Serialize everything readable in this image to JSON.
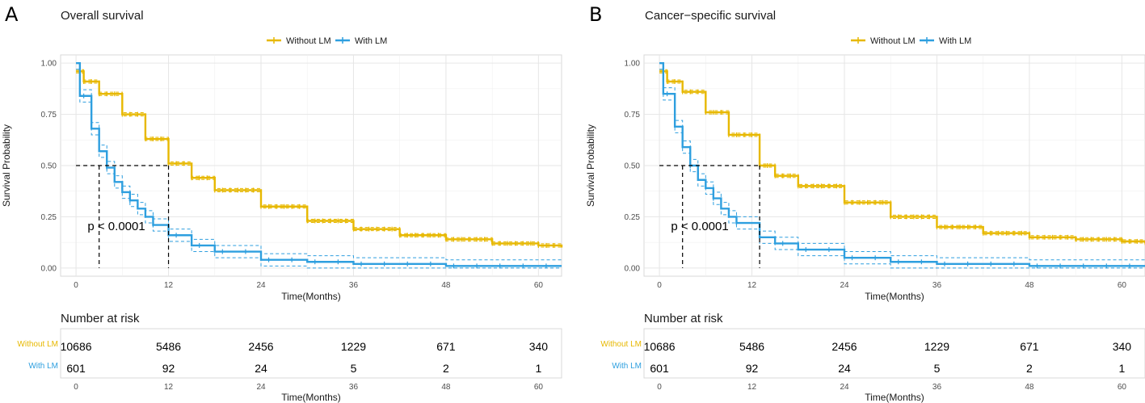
{
  "chart_data": [
    {
      "type": "line",
      "panel_label": "A",
      "title": "Overall survival",
      "xlabel": "Time(Months)",
      "ylabel": "Survival Probability",
      "xlim": [
        -2,
        63
      ],
      "ylim": [
        -0.04,
        1.04
      ],
      "xticks": [
        "0",
        "12",
        "24",
        "36",
        "48",
        "60"
      ],
      "yticks": [
        "0.00",
        "0.25",
        "0.50",
        "0.75",
        "1.00"
      ],
      "legend": [
        "Without LM",
        "With LM"
      ],
      "pvalue": "p < 0.0001",
      "median_lines": [
        {
          "series": "With LM",
          "x": 3,
          "y": 0.5
        },
        {
          "series": "Without LM",
          "x": 12,
          "y": 0.5
        }
      ],
      "series": [
        {
          "name": "Without LM",
          "color": "#e7b800",
          "x": [
            0,
            1,
            3,
            6,
            9,
            12,
            15,
            18,
            24,
            30,
            36,
            42,
            48,
            54,
            60,
            63
          ],
          "y": [
            0.96,
            0.91,
            0.85,
            0.75,
            0.63,
            0.51,
            0.44,
            0.38,
            0.3,
            0.23,
            0.19,
            0.16,
            0.14,
            0.12,
            0.11,
            0.1
          ]
        },
        {
          "name": "With LM",
          "color": "#2e9fdf",
          "x": [
            0,
            0.5,
            1,
            2,
            3,
            4,
            5,
            6,
            7,
            8,
            9,
            10,
            12,
            15,
            18,
            24,
            30,
            36,
            48,
            63
          ],
          "y": [
            1.0,
            0.84,
            0.84,
            0.68,
            0.57,
            0.49,
            0.42,
            0.37,
            0.33,
            0.29,
            0.25,
            0.21,
            0.16,
            0.11,
            0.08,
            0.04,
            0.03,
            0.02,
            0.01,
            0.01
          ]
        }
      ],
      "risk_table": {
        "title": "Number at risk",
        "xlabel": "Time(Months)",
        "times": [
          0,
          12,
          24,
          36,
          48,
          60
        ],
        "rows": [
          {
            "label": "Without LM",
            "color": "#e7b800",
            "values": [
              "10686",
              "5486",
              "2456",
              "1229",
              "671",
              "340"
            ]
          },
          {
            "label": "With LM",
            "color": "#2e9fdf",
            "values": [
              "601",
              "92",
              "24",
              "5",
              "2",
              "1"
            ]
          }
        ]
      }
    },
    {
      "type": "line",
      "panel_label": "B",
      "title": "Cancer−specific survival",
      "xlabel": "Time(Months)",
      "ylabel": "Survival Probability",
      "xlim": [
        -2,
        63
      ],
      "ylim": [
        -0.04,
        1.04
      ],
      "xticks": [
        "0",
        "12",
        "24",
        "36",
        "48",
        "60"
      ],
      "yticks": [
        "0.00",
        "0.25",
        "0.50",
        "0.75",
        "1.00"
      ],
      "legend": [
        "Without LM",
        "With LM"
      ],
      "pvalue": "p < 0.0001",
      "median_lines": [
        {
          "series": "With LM",
          "x": 3,
          "y": 0.5
        },
        {
          "series": "Without LM",
          "x": 13,
          "y": 0.5
        }
      ],
      "series": [
        {
          "name": "Without LM",
          "color": "#e7b800",
          "x": [
            0,
            1,
            3,
            6,
            9,
            13,
            15,
            18,
            24,
            30,
            36,
            42,
            48,
            54,
            60,
            63
          ],
          "y": [
            0.96,
            0.91,
            0.86,
            0.76,
            0.65,
            0.5,
            0.45,
            0.4,
            0.32,
            0.25,
            0.2,
            0.17,
            0.15,
            0.14,
            0.13,
            0.12
          ]
        },
        {
          "name": "With LM",
          "color": "#2e9fdf",
          "x": [
            0,
            0.5,
            1,
            2,
            3,
            4,
            5,
            6,
            7,
            8,
            9,
            10,
            13,
            15,
            18,
            24,
            30,
            36,
            48,
            63
          ],
          "y": [
            1.0,
            0.85,
            0.85,
            0.69,
            0.59,
            0.5,
            0.43,
            0.39,
            0.34,
            0.29,
            0.25,
            0.22,
            0.15,
            0.12,
            0.09,
            0.05,
            0.03,
            0.02,
            0.01,
            0.01
          ]
        }
      ],
      "risk_table": {
        "title": "Number at risk",
        "xlabel": "Time(Months)",
        "times": [
          0,
          12,
          24,
          36,
          48,
          60
        ],
        "rows": [
          {
            "label": "Without LM",
            "color": "#e7b800",
            "values": [
              "10686",
              "5486",
              "2456",
              "1229",
              "671",
              "340"
            ]
          },
          {
            "label": "With LM",
            "color": "#2e9fdf",
            "values": [
              "601",
              "92",
              "24",
              "5",
              "2",
              "1"
            ]
          }
        ]
      }
    }
  ]
}
